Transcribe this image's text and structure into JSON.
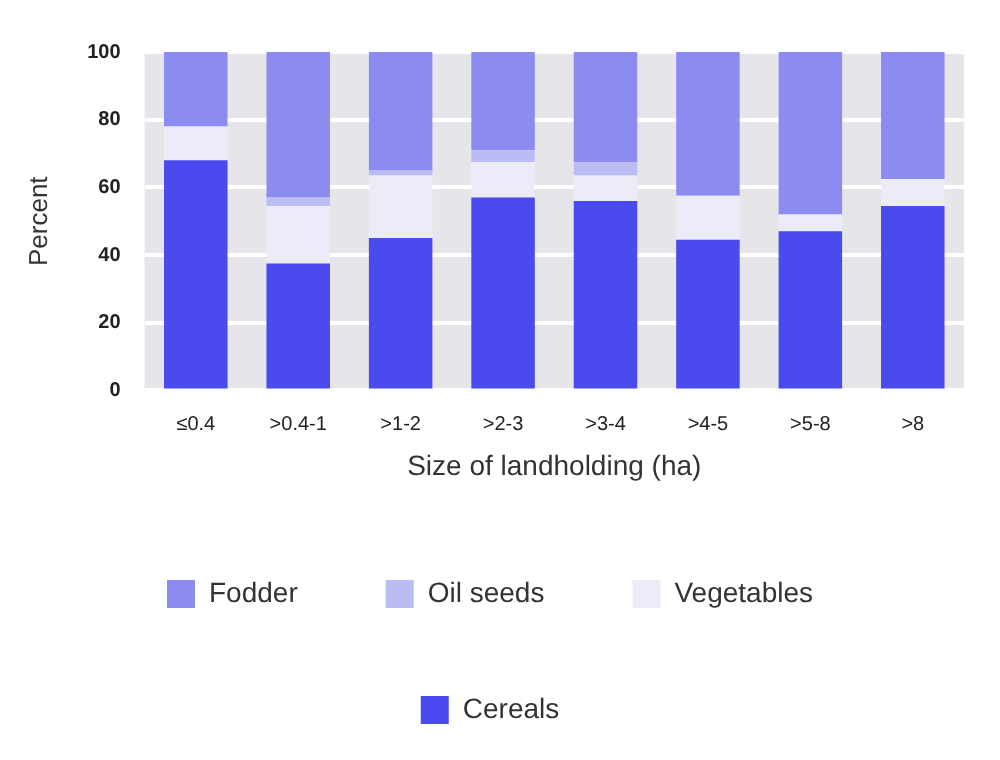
{
  "chart_data": {
    "type": "bar",
    "stacked": true,
    "xlabel": "Size of landholding (ha)",
    "ylabel": "Percent",
    "categories": [
      "≤0.4",
      ">0.4-1",
      ">1-2",
      ">2-3",
      ">3-4",
      ">4-5",
      ">5-8",
      ">8"
    ],
    "series": [
      {
        "name": "Cereals",
        "color": "#4a4aee",
        "values": [
          68,
          37.5,
          45,
          57,
          56,
          44.5,
          47,
          54.5
        ]
      },
      {
        "name": "Vegetables",
        "color": "#ececf8",
        "values": [
          10,
          17,
          18.5,
          10.5,
          7.5,
          13,
          5,
          8
        ]
      },
      {
        "name": "Oil seeds",
        "color": "#bcbcf4",
        "values": [
          0,
          2.5,
          1.5,
          3.5,
          4,
          0,
          0,
          0
        ]
      },
      {
        "name": "Fodder",
        "color": "#8c8cf0",
        "values": [
          22,
          43,
          35,
          29,
          32.5,
          42.5,
          48,
          37.5
        ]
      }
    ],
    "ylim": [
      0,
      100
    ],
    "yticks": [
      0,
      20,
      40,
      60,
      80,
      100
    ],
    "grid": "y",
    "legend": "bottom"
  }
}
